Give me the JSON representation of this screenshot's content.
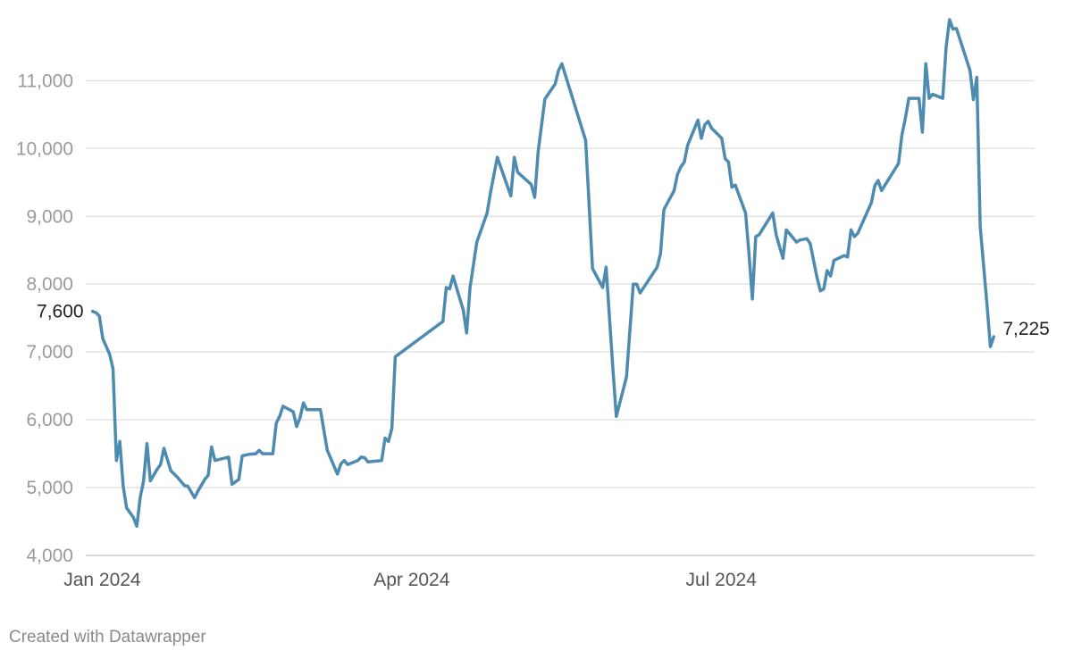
{
  "chart_data": {
    "type": "line",
    "xaxis_type": "date",
    "x_ticks": [
      {
        "label": "Jan 2024",
        "date": "2024-01-01"
      },
      {
        "label": "Apr 2024",
        "date": "2024-04-01"
      },
      {
        "label": "Jul 2024",
        "date": "2024-07-01"
      }
    ],
    "y_ticks": [
      4000,
      5000,
      6000,
      7000,
      8000,
      9000,
      10000,
      11000
    ],
    "ylim": [
      4000,
      11900
    ],
    "xlim": [
      "2023-12-29",
      "2024-10-03"
    ],
    "grid": true,
    "line_color": "#4e8bb0",
    "series": [
      {
        "points": [
          [
            "2023-12-31",
            7600
          ],
          [
            "2024-01-01",
            7580
          ],
          [
            "2024-01-02",
            7530
          ],
          [
            "2024-01-03",
            7200
          ],
          [
            "2024-01-05",
            6970
          ],
          [
            "2024-01-06",
            6750
          ],
          [
            "2024-01-07",
            5400
          ],
          [
            "2024-01-08",
            5680
          ],
          [
            "2024-01-09",
            5020
          ],
          [
            "2024-01-10",
            4700
          ],
          [
            "2024-01-12",
            4560
          ],
          [
            "2024-01-13",
            4430
          ],
          [
            "2024-01-14",
            4850
          ],
          [
            "2024-01-15",
            5100
          ],
          [
            "2024-01-16",
            5650
          ],
          [
            "2024-01-17",
            5100
          ],
          [
            "2024-01-19",
            5270
          ],
          [
            "2024-01-20",
            5340
          ],
          [
            "2024-01-21",
            5580
          ],
          [
            "2024-01-23",
            5250
          ],
          [
            "2024-01-25",
            5150
          ],
          [
            "2024-01-27",
            5030
          ],
          [
            "2024-01-28",
            5020
          ],
          [
            "2024-01-30",
            4850
          ],
          [
            "2024-01-31",
            4950
          ],
          [
            "2024-02-02",
            5120
          ],
          [
            "2024-02-03",
            5180
          ],
          [
            "2024-02-04",
            5600
          ],
          [
            "2024-02-05",
            5400
          ],
          [
            "2024-02-09",
            5450
          ],
          [
            "2024-02-10",
            5050
          ],
          [
            "2024-02-12",
            5120
          ],
          [
            "2024-02-13",
            5470
          ],
          [
            "2024-02-15",
            5490
          ],
          [
            "2024-02-17",
            5500
          ],
          [
            "2024-02-18",
            5550
          ],
          [
            "2024-02-19",
            5500
          ],
          [
            "2024-02-22",
            5500
          ],
          [
            "2024-02-23",
            5950
          ],
          [
            "2024-02-24",
            6050
          ],
          [
            "2024-02-25",
            6200
          ],
          [
            "2024-02-28",
            6120
          ],
          [
            "2024-02-29",
            5900
          ],
          [
            "2024-03-01",
            6030
          ],
          [
            "2024-03-02",
            6250
          ],
          [
            "2024-03-03",
            6150
          ],
          [
            "2024-03-07",
            6150
          ],
          [
            "2024-03-09",
            5550
          ],
          [
            "2024-03-12",
            5200
          ],
          [
            "2024-03-13",
            5350
          ],
          [
            "2024-03-14",
            5400
          ],
          [
            "2024-03-15",
            5340
          ],
          [
            "2024-03-18",
            5400
          ],
          [
            "2024-03-19",
            5450
          ],
          [
            "2024-03-20",
            5440
          ],
          [
            "2024-03-21",
            5380
          ],
          [
            "2024-03-25",
            5400
          ],
          [
            "2024-03-26",
            5730
          ],
          [
            "2024-03-27",
            5680
          ],
          [
            "2024-03-28",
            5870
          ],
          [
            "2024-03-29",
            6930
          ],
          [
            "2024-04-12",
            7450
          ],
          [
            "2024-04-13",
            7950
          ],
          [
            "2024-04-14",
            7930
          ],
          [
            "2024-04-15",
            8120
          ],
          [
            "2024-04-16",
            7950
          ],
          [
            "2024-04-18",
            7620
          ],
          [
            "2024-04-19",
            7280
          ],
          [
            "2024-04-20",
            7950
          ],
          [
            "2024-04-22",
            8620
          ],
          [
            "2024-04-25",
            9050
          ],
          [
            "2024-04-26",
            9350
          ],
          [
            "2024-04-28",
            9870
          ],
          [
            "2024-05-02",
            9300
          ],
          [
            "2024-05-03",
            9870
          ],
          [
            "2024-05-04",
            9650
          ],
          [
            "2024-05-08",
            9470
          ],
          [
            "2024-05-09",
            9280
          ],
          [
            "2024-05-10",
            9950
          ],
          [
            "2024-05-12",
            10730
          ],
          [
            "2024-05-15",
            10950
          ],
          [
            "2024-05-16",
            11150
          ],
          [
            "2024-05-17",
            11250
          ],
          [
            "2024-05-24",
            10120
          ],
          [
            "2024-05-26",
            8230
          ],
          [
            "2024-05-29",
            7950
          ],
          [
            "2024-05-30",
            8250
          ],
          [
            "2024-06-01",
            6750
          ],
          [
            "2024-06-02",
            6050
          ],
          [
            "2024-06-05",
            6630
          ],
          [
            "2024-06-07",
            8000
          ],
          [
            "2024-06-08",
            8000
          ],
          [
            "2024-06-09",
            7870
          ],
          [
            "2024-06-14",
            8250
          ],
          [
            "2024-06-15",
            8450
          ],
          [
            "2024-06-16",
            9100
          ],
          [
            "2024-06-19",
            9380
          ],
          [
            "2024-06-20",
            9620
          ],
          [
            "2024-06-21",
            9730
          ],
          [
            "2024-06-22",
            9800
          ],
          [
            "2024-06-23",
            10050
          ],
          [
            "2024-06-26",
            10420
          ],
          [
            "2024-06-27",
            10150
          ],
          [
            "2024-06-28",
            10350
          ],
          [
            "2024-06-29",
            10400
          ],
          [
            "2024-06-30",
            10300
          ],
          [
            "2024-07-03",
            10150
          ],
          [
            "2024-07-04",
            9850
          ],
          [
            "2024-07-05",
            9800
          ],
          [
            "2024-07-06",
            9430
          ],
          [
            "2024-07-07",
            9460
          ],
          [
            "2024-07-10",
            9050
          ],
          [
            "2024-07-11",
            8450
          ],
          [
            "2024-07-12",
            7780
          ],
          [
            "2024-07-13",
            8700
          ],
          [
            "2024-07-14",
            8730
          ],
          [
            "2024-07-18",
            9050
          ],
          [
            "2024-07-19",
            8730
          ],
          [
            "2024-07-21",
            8380
          ],
          [
            "2024-07-22",
            8800
          ],
          [
            "2024-07-25",
            8620
          ],
          [
            "2024-07-26",
            8650
          ],
          [
            "2024-07-28",
            8670
          ],
          [
            "2024-07-29",
            8600
          ],
          [
            "2024-07-31",
            8100
          ],
          [
            "2024-08-01",
            7900
          ],
          [
            "2024-08-02",
            7930
          ],
          [
            "2024-08-03",
            8200
          ],
          [
            "2024-08-04",
            8120
          ],
          [
            "2024-08-05",
            8350
          ],
          [
            "2024-08-08",
            8420
          ],
          [
            "2024-08-09",
            8400
          ],
          [
            "2024-08-10",
            8800
          ],
          [
            "2024-08-11",
            8700
          ],
          [
            "2024-08-12",
            8750
          ],
          [
            "2024-08-16",
            9200
          ],
          [
            "2024-08-17",
            9450
          ],
          [
            "2024-08-18",
            9530
          ],
          [
            "2024-08-19",
            9380
          ],
          [
            "2024-08-24",
            9780
          ],
          [
            "2024-08-25",
            10200
          ],
          [
            "2024-08-26",
            10450
          ],
          [
            "2024-08-27",
            10740
          ],
          [
            "2024-08-30",
            10740
          ],
          [
            "2024-08-31",
            10240
          ],
          [
            "2024-09-01",
            11250
          ],
          [
            "2024-09-02",
            10740
          ],
          [
            "2024-09-03",
            10800
          ],
          [
            "2024-09-06",
            10740
          ],
          [
            "2024-09-07",
            11500
          ],
          [
            "2024-09-08",
            11900
          ],
          [
            "2024-09-09",
            11760
          ],
          [
            "2024-09-10",
            11770
          ],
          [
            "2024-09-14",
            11150
          ],
          [
            "2024-09-15",
            10720
          ],
          [
            "2024-09-16",
            11050
          ],
          [
            "2024-09-17",
            8850
          ],
          [
            "2024-09-19",
            7700
          ],
          [
            "2024-09-20",
            7080
          ],
          [
            "2024-09-21",
            7225
          ]
        ]
      }
    ],
    "annotations": {
      "start_label": "7,600",
      "end_label": "7,225"
    }
  },
  "footer": {
    "credit": "Created with Datawrapper"
  }
}
